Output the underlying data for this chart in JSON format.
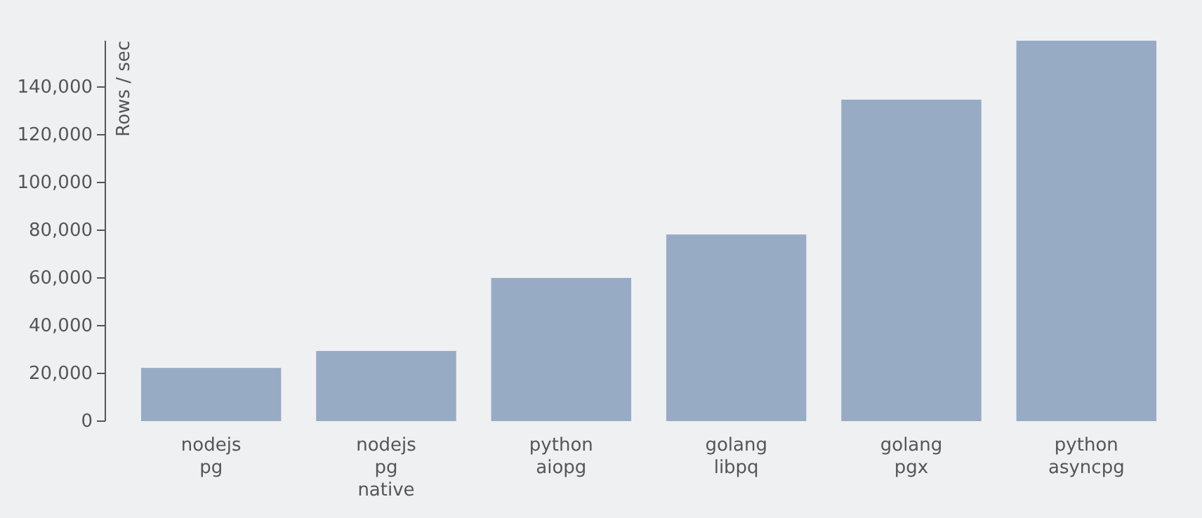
{
  "chart_data": {
    "type": "bar",
    "ylabel": "Rows / sec",
    "categories": [
      "nodejs\npg",
      "nodejs\npg\nnative",
      "python\naiopg",
      "golang\nlibpq",
      "golang\npgx",
      "python\nasyncpg"
    ],
    "values": [
      22300,
      29400,
      60000,
      78200,
      134700,
      159400
    ],
    "color": "#98abc5",
    "ylim": [
      0,
      159400
    ],
    "yticks": [
      {
        "value": 0,
        "label": "0"
      },
      {
        "value": 20000,
        "label": "20,000"
      },
      {
        "value": 40000,
        "label": "40,000"
      },
      {
        "value": 60000,
        "label": "60,000"
      },
      {
        "value": 80000,
        "label": "80,000"
      },
      {
        "value": 100000,
        "label": "100,000"
      },
      {
        "value": 120000,
        "label": "120,000"
      },
      {
        "value": 140000,
        "label": "140,000"
      }
    ],
    "grid": false
  }
}
